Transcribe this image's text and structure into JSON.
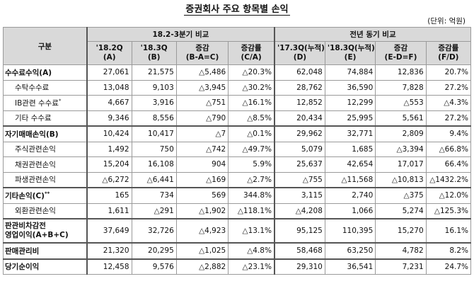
{
  "title": "증권회사 주요 항목별 손익",
  "unit": "(단위: 억원)",
  "header": {
    "category": "구분",
    "group1": "18.2-3분기 비교",
    "group2": "전년 동기 비교",
    "cols": [
      [
        "'18.2Q",
        "(A)"
      ],
      [
        "'18.3Q",
        "(B)"
      ],
      [
        "증감",
        "(B-A=C)"
      ],
      [
        "증감률",
        "(C/A)"
      ],
      [
        "'17.3Q(누적)",
        "(D)"
      ],
      [
        "'18.3Q(누적)",
        "(E)"
      ],
      [
        "증감",
        "(E-D=F)"
      ],
      [
        "증감률",
        "(F/D)"
      ]
    ]
  },
  "rows": [
    {
      "label": "수수료수익(A)",
      "type": "main",
      "v": [
        "27,061",
        "21,575",
        "△5,486",
        "△20.3%",
        "62,048",
        "74,884",
        "12,836",
        "20.7%"
      ]
    },
    {
      "label": "수탁수수료",
      "type": "sub",
      "v": [
        "13,048",
        "9,103",
        "△3,945",
        "△30.2%",
        "28,762",
        "36,590",
        "7,828",
        "27.2%"
      ]
    },
    {
      "label": "IB관련 수수료",
      "type": "sub",
      "sup": "*",
      "v": [
        "4,667",
        "3,916",
        "△751",
        "△16.1%",
        "12,852",
        "12,299",
        "△553",
        "△4.3%"
      ]
    },
    {
      "label": "기타 수수료",
      "type": "sub",
      "v": [
        "9,346",
        "8,556",
        "△790",
        "△8.5%",
        "20,434",
        "25,995",
        "5,561",
        "27.2%"
      ]
    },
    {
      "label": "자기매매손익(B)",
      "type": "main",
      "v": [
        "10,424",
        "10,417",
        "△7",
        "△0.1%",
        "29,962",
        "32,771",
        "2,809",
        "9.4%"
      ]
    },
    {
      "label": "주식관련손익",
      "type": "sub",
      "v": [
        "1,492",
        "750",
        "△742",
        "△49.7%",
        "5,079",
        "1,685",
        "△3,394",
        "△66.8%"
      ]
    },
    {
      "label": "채권관련손익",
      "type": "sub",
      "v": [
        "15,204",
        "16,108",
        "904",
        "5.9%",
        "25,637",
        "42,654",
        "17,017",
        "66.4%"
      ]
    },
    {
      "label": "파생관련손익",
      "type": "sub",
      "v": [
        "△6,272",
        "△6,441",
        "△169",
        "△2.7%",
        "△755",
        "△11,568",
        "△10,813",
        "△1432.2%"
      ]
    },
    {
      "label": "기타손익(C)",
      "type": "main",
      "sup": "**",
      "v": [
        "165",
        "734",
        "569",
        "344.8%",
        "3,115",
        "2,740",
        "△375",
        "△12.0%"
      ]
    },
    {
      "label": "외환관련손익",
      "type": "sub",
      "v": [
        "1,611",
        "△291",
        "△1,902",
        "△118.1%",
        "△4,208",
        "1,066",
        "5,274",
        "△125.3%"
      ]
    },
    {
      "label": "판관비차감전",
      "label2": "영업이익(A+B+C)",
      "type": "main",
      "tall": true,
      "v": [
        "37,649",
        "32,726",
        "△4,923",
        "△13.1%",
        "95,125",
        "110,395",
        "15,270",
        "16.1%"
      ]
    },
    {
      "label": "판매관리비",
      "type": "main",
      "v": [
        "21,320",
        "20,295",
        "△1,025",
        "△4.8%",
        "58,468",
        "63,250",
        "4,782",
        "8.2%"
      ]
    },
    {
      "label": "당기순이익",
      "type": "main",
      "v": [
        "12,458",
        "9,576",
        "△2,882",
        "△23.1%",
        "29,310",
        "36,541",
        "7,231",
        "24.7%"
      ]
    }
  ]
}
